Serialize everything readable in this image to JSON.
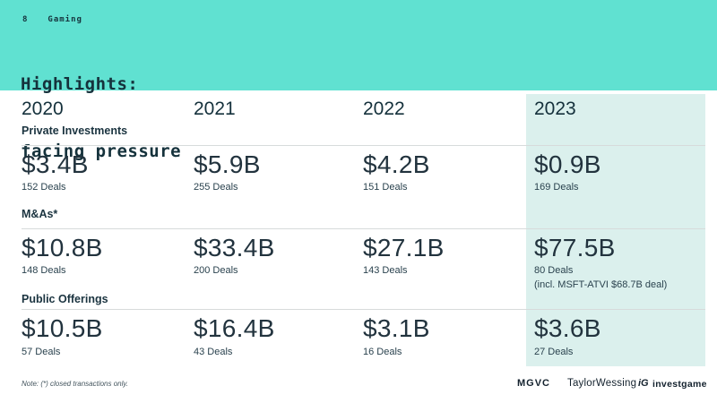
{
  "colors": {
    "header_bg": "#60E1D1",
    "highlight_bg": "#DBF0ED",
    "text_dark": "#15323C",
    "rule": "#D7DBDB"
  },
  "header": {
    "page_number": "8",
    "section": "Gaming",
    "title_line1": "Highlights:",
    "title_line2": "facing pressure"
  },
  "table": {
    "years": [
      "2020",
      "2021",
      "2022",
      "2023"
    ],
    "highlight_year": "2023",
    "sections": [
      {
        "label": "Private Investments",
        "cells": [
          {
            "value": "$3.4B",
            "deals": "152 Deals"
          },
          {
            "value": "$5.9B",
            "deals": "255 Deals"
          },
          {
            "value": "$4.2B",
            "deals": "151 Deals"
          },
          {
            "value": "$0.9B",
            "deals": "169 Deals"
          }
        ]
      },
      {
        "label": "M&As*",
        "cells": [
          {
            "value": "$10.8B",
            "deals": "148 Deals"
          },
          {
            "value": "$33.4B",
            "deals": "200 Deals"
          },
          {
            "value": "$27.1B",
            "deals": "143 Deals"
          },
          {
            "value": "$77.5B",
            "deals": "80 Deals",
            "note": "(incl. MSFT-ATVI $68.7B deal)"
          }
        ]
      },
      {
        "label": "Public Offerings",
        "cells": [
          {
            "value": "$10.5B",
            "deals": "57 Deals"
          },
          {
            "value": "$16.4B",
            "deals": "43 Deals"
          },
          {
            "value": "$3.1B",
            "deals": "16 Deals"
          },
          {
            "value": "$3.6B",
            "deals": "27 Deals"
          }
        ]
      }
    ]
  },
  "footer": {
    "note": "Note: (*) closed transactions only.",
    "logos": {
      "mgvc": "MGVC",
      "taylorwessing": "TaylorWessing",
      "investgame_icon": "iG",
      "investgame": "investgame"
    }
  }
}
